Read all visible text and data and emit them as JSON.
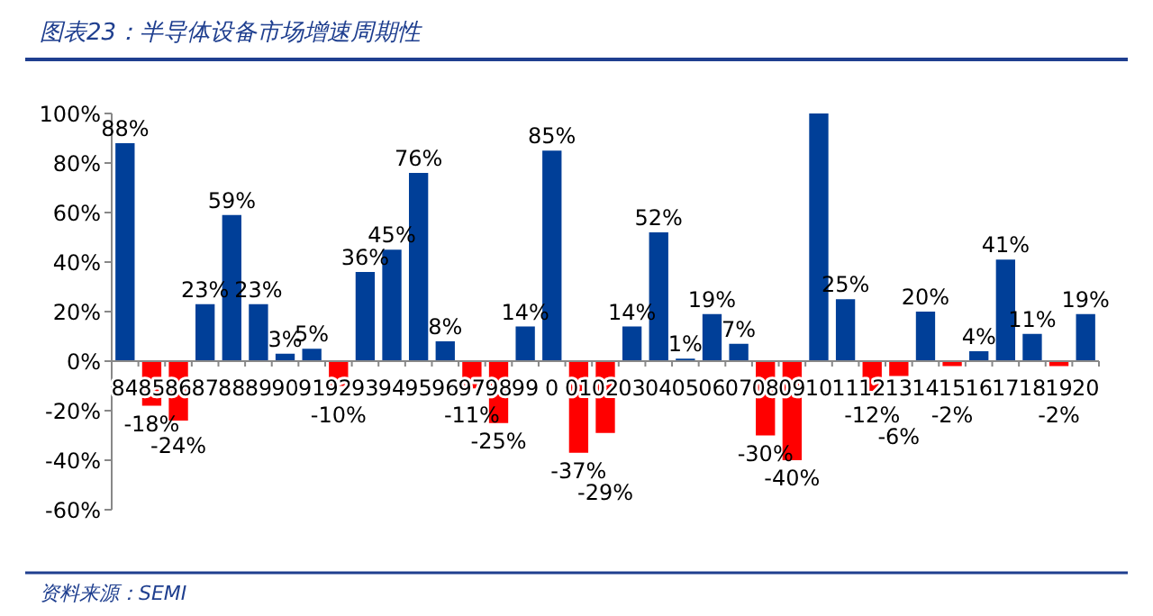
{
  "chart_data": {
    "type": "bar",
    "title": "图表23：半导体设备市场增速周期性",
    "categories": [
      "84",
      "85",
      "86",
      "87",
      "88",
      "89",
      "90",
      "91",
      "92",
      "93",
      "94",
      "95",
      "96",
      "97",
      "98",
      "99",
      "0",
      "01",
      "02",
      "03",
      "04",
      "05",
      "06",
      "07",
      "08",
      "09",
      "10",
      "11",
      "12",
      "13",
      "14",
      "15",
      "16",
      "17",
      "18",
      "19",
      "20"
    ],
    "values": [
      88,
      -18,
      -24,
      23,
      59,
      23,
      3,
      5,
      -10,
      36,
      45,
      76,
      8,
      -11,
      -25,
      14,
      85,
      -37,
      -29,
      14,
      52,
      1,
      19,
      7,
      -30,
      -40,
      100,
      25,
      -12,
      -6,
      20,
      -2,
      4,
      41,
      11,
      -2,
      19
    ],
    "colors": [
      "#003f98",
      "#ff0000",
      "#ff0000",
      "#003f98",
      "#003f98",
      "#003f98",
      "#003f98",
      "#003f98",
      "#ff0000",
      "#003f98",
      "#003f98",
      "#003f98",
      "#003f98",
      "#ff0000",
      "#ff0000",
      "#003f98",
      "#003f98",
      "#ff0000",
      "#ff0000",
      "#003f98",
      "#003f98",
      "#003f98",
      "#003f98",
      "#003f98",
      "#ff0000",
      "#ff0000",
      "#003f98",
      "#003f98",
      "#ff0000",
      "#ff0000",
      "#003f98",
      "#ff0000",
      "#003f98",
      "#003f98",
      "#003f98",
      "#ff0000",
      "#003f98"
    ],
    "value_labels": [
      "88%",
      "-18%",
      "-24%",
      "23%",
      "59%",
      "23%",
      "3%",
      "5%",
      "-10%",
      "36%",
      "45%",
      "76%",
      "8%",
      "-11%",
      "-25%",
      "14%",
      "85%",
      "-37%",
      "-29%",
      "14%",
      "52%",
      "1%",
      "19%",
      "7%",
      "-30%",
      "-40%",
      null,
      "25%",
      "-12%",
      "-6%",
      "20%",
      "-2%",
      "4%",
      "41%",
      "11%",
      "-2%",
      "19%"
    ],
    "ylim": [
      -60,
      100
    ],
    "yticks": [
      {
        "value": 100,
        "label": "100%"
      },
      {
        "value": 80,
        "label": "80%"
      },
      {
        "value": 60,
        "label": "60%"
      },
      {
        "value": 40,
        "label": "40%"
      },
      {
        "value": 20,
        "label": "20%"
      },
      {
        "value": 0,
        "label": "0%"
      },
      {
        "value": -20,
        "label": "-20%"
      },
      {
        "value": -40,
        "label": "-40%"
      },
      {
        "value": -60,
        "label": "-60%"
      }
    ],
    "annotations": [
      "资料来源：SEMI"
    ]
  }
}
